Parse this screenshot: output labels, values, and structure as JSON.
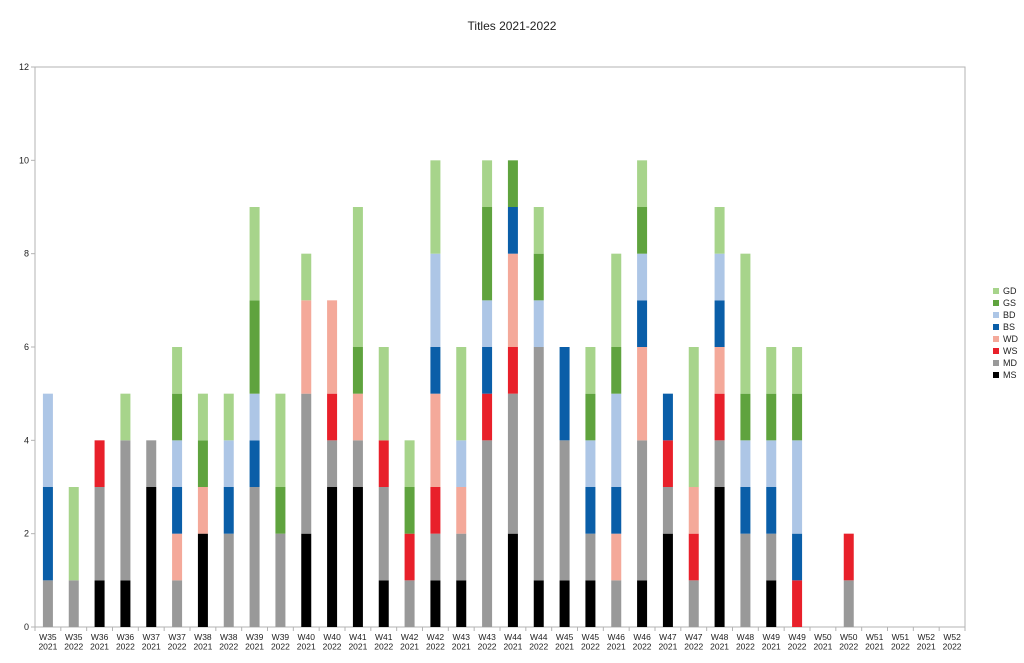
{
  "chart_data": {
    "type": "bar",
    "stacked": true,
    "title": "Titles 2021-2022",
    "xlabel": "",
    "ylabel": "",
    "ylim": [
      0,
      12
    ],
    "yticks": [
      0,
      2,
      4,
      6,
      8,
      10,
      12
    ],
    "grid": false,
    "legend_position": "right",
    "categories": [
      [
        "W35",
        "2021"
      ],
      [
        "W35",
        "2022"
      ],
      [
        "W36",
        "2021"
      ],
      [
        "W36",
        "2022"
      ],
      [
        "W37",
        "2021"
      ],
      [
        "W37",
        "2022"
      ],
      [
        "W38",
        "2021"
      ],
      [
        "W38",
        "2022"
      ],
      [
        "W39",
        "2021"
      ],
      [
        "W39",
        "2022"
      ],
      [
        "W40",
        "2021"
      ],
      [
        "W40",
        "2022"
      ],
      [
        "W41",
        "2021"
      ],
      [
        "W41",
        "2022"
      ],
      [
        "W42",
        "2021"
      ],
      [
        "W42",
        "2022"
      ],
      [
        "W43",
        "2021"
      ],
      [
        "W43",
        "2022"
      ],
      [
        "W44",
        "2021"
      ],
      [
        "W44",
        "2022"
      ],
      [
        "W45",
        "2021"
      ],
      [
        "W45",
        "2022"
      ],
      [
        "W46",
        "2021"
      ],
      [
        "W46",
        "2022"
      ],
      [
        "W47",
        "2021"
      ],
      [
        "W47",
        "2022"
      ],
      [
        "W48",
        "2021"
      ],
      [
        "W48",
        "2022"
      ],
      [
        "W49",
        "2021"
      ],
      [
        "W49",
        "2022"
      ],
      [
        "W50",
        "2021"
      ],
      [
        "W50",
        "2022"
      ],
      [
        "W51",
        "2021"
      ],
      [
        "W51",
        "2022"
      ],
      [
        "W52",
        "2021"
      ],
      [
        "W52",
        "2022"
      ]
    ],
    "series": [
      {
        "name": "MS",
        "color": "#000000",
        "values": [
          0,
          0,
          1,
          1,
          3,
          0,
          2,
          0,
          0,
          0,
          2,
          3,
          3,
          1,
          0,
          1,
          1,
          0,
          2,
          1,
          1,
          1,
          0,
          1,
          2,
          0,
          3,
          0,
          1,
          0,
          0,
          0,
          0,
          0,
          0,
          0
        ]
      },
      {
        "name": "MD",
        "color": "#999999",
        "values": [
          1,
          1,
          2,
          3,
          1,
          1,
          0,
          2,
          3,
          2,
          3,
          1,
          1,
          2,
          1,
          1,
          1,
          4,
          3,
          5,
          3,
          1,
          1,
          3,
          1,
          1,
          1,
          2,
          1,
          0,
          0,
          1,
          0,
          0,
          0,
          0
        ]
      },
      {
        "name": "WS",
        "color": "#e8202a",
        "values": [
          0,
          0,
          1,
          0,
          0,
          0,
          0,
          0,
          0,
          0,
          0,
          1,
          0,
          1,
          1,
          1,
          0,
          1,
          1,
          0,
          0,
          0,
          0,
          0,
          1,
          1,
          1,
          0,
          0,
          1,
          0,
          1,
          0,
          0,
          0,
          0
        ]
      },
      {
        "name": "WD",
        "color": "#f4a99a",
        "values": [
          0,
          0,
          0,
          0,
          0,
          1,
          1,
          0,
          0,
          0,
          2,
          2,
          1,
          0,
          0,
          2,
          1,
          0,
          2,
          0,
          0,
          0,
          1,
          2,
          0,
          1,
          1,
          0,
          0,
          0,
          0,
          0,
          0,
          0,
          0,
          0
        ]
      },
      {
        "name": "BS",
        "color": "#0a5ea8",
        "values": [
          2,
          0,
          0,
          0,
          0,
          1,
          0,
          1,
          1,
          0,
          0,
          0,
          0,
          0,
          0,
          1,
          0,
          1,
          1,
          0,
          2,
          1,
          1,
          1,
          1,
          0,
          1,
          1,
          1,
          1,
          0,
          0,
          0,
          0,
          0,
          0
        ]
      },
      {
        "name": "BD",
        "color": "#adc6e6",
        "values": [
          2,
          0,
          0,
          0,
          0,
          1,
          0,
          1,
          1,
          0,
          0,
          0,
          0,
          0,
          0,
          2,
          1,
          1,
          0,
          1,
          0,
          1,
          2,
          1,
          0,
          0,
          1,
          1,
          1,
          2,
          0,
          0,
          0,
          0,
          0,
          0
        ]
      },
      {
        "name": "GS",
        "color": "#5fa33e",
        "values": [
          0,
          0,
          0,
          0,
          0,
          1,
          1,
          0,
          2,
          1,
          0,
          0,
          1,
          0,
          1,
          0,
          0,
          2,
          1,
          1,
          0,
          1,
          1,
          1,
          0,
          0,
          0,
          1,
          1,
          1,
          0,
          0,
          0,
          0,
          0,
          0
        ]
      },
      {
        "name": "GD",
        "color": "#a7d48b",
        "values": [
          0,
          2,
          0,
          1,
          0,
          1,
          1,
          1,
          2,
          2,
          1,
          0,
          3,
          2,
          1,
          2,
          2,
          1,
          0,
          1,
          0,
          1,
          2,
          1,
          0,
          3,
          1,
          3,
          1,
          1,
          0,
          0,
          0,
          0,
          0,
          0
        ]
      }
    ]
  }
}
